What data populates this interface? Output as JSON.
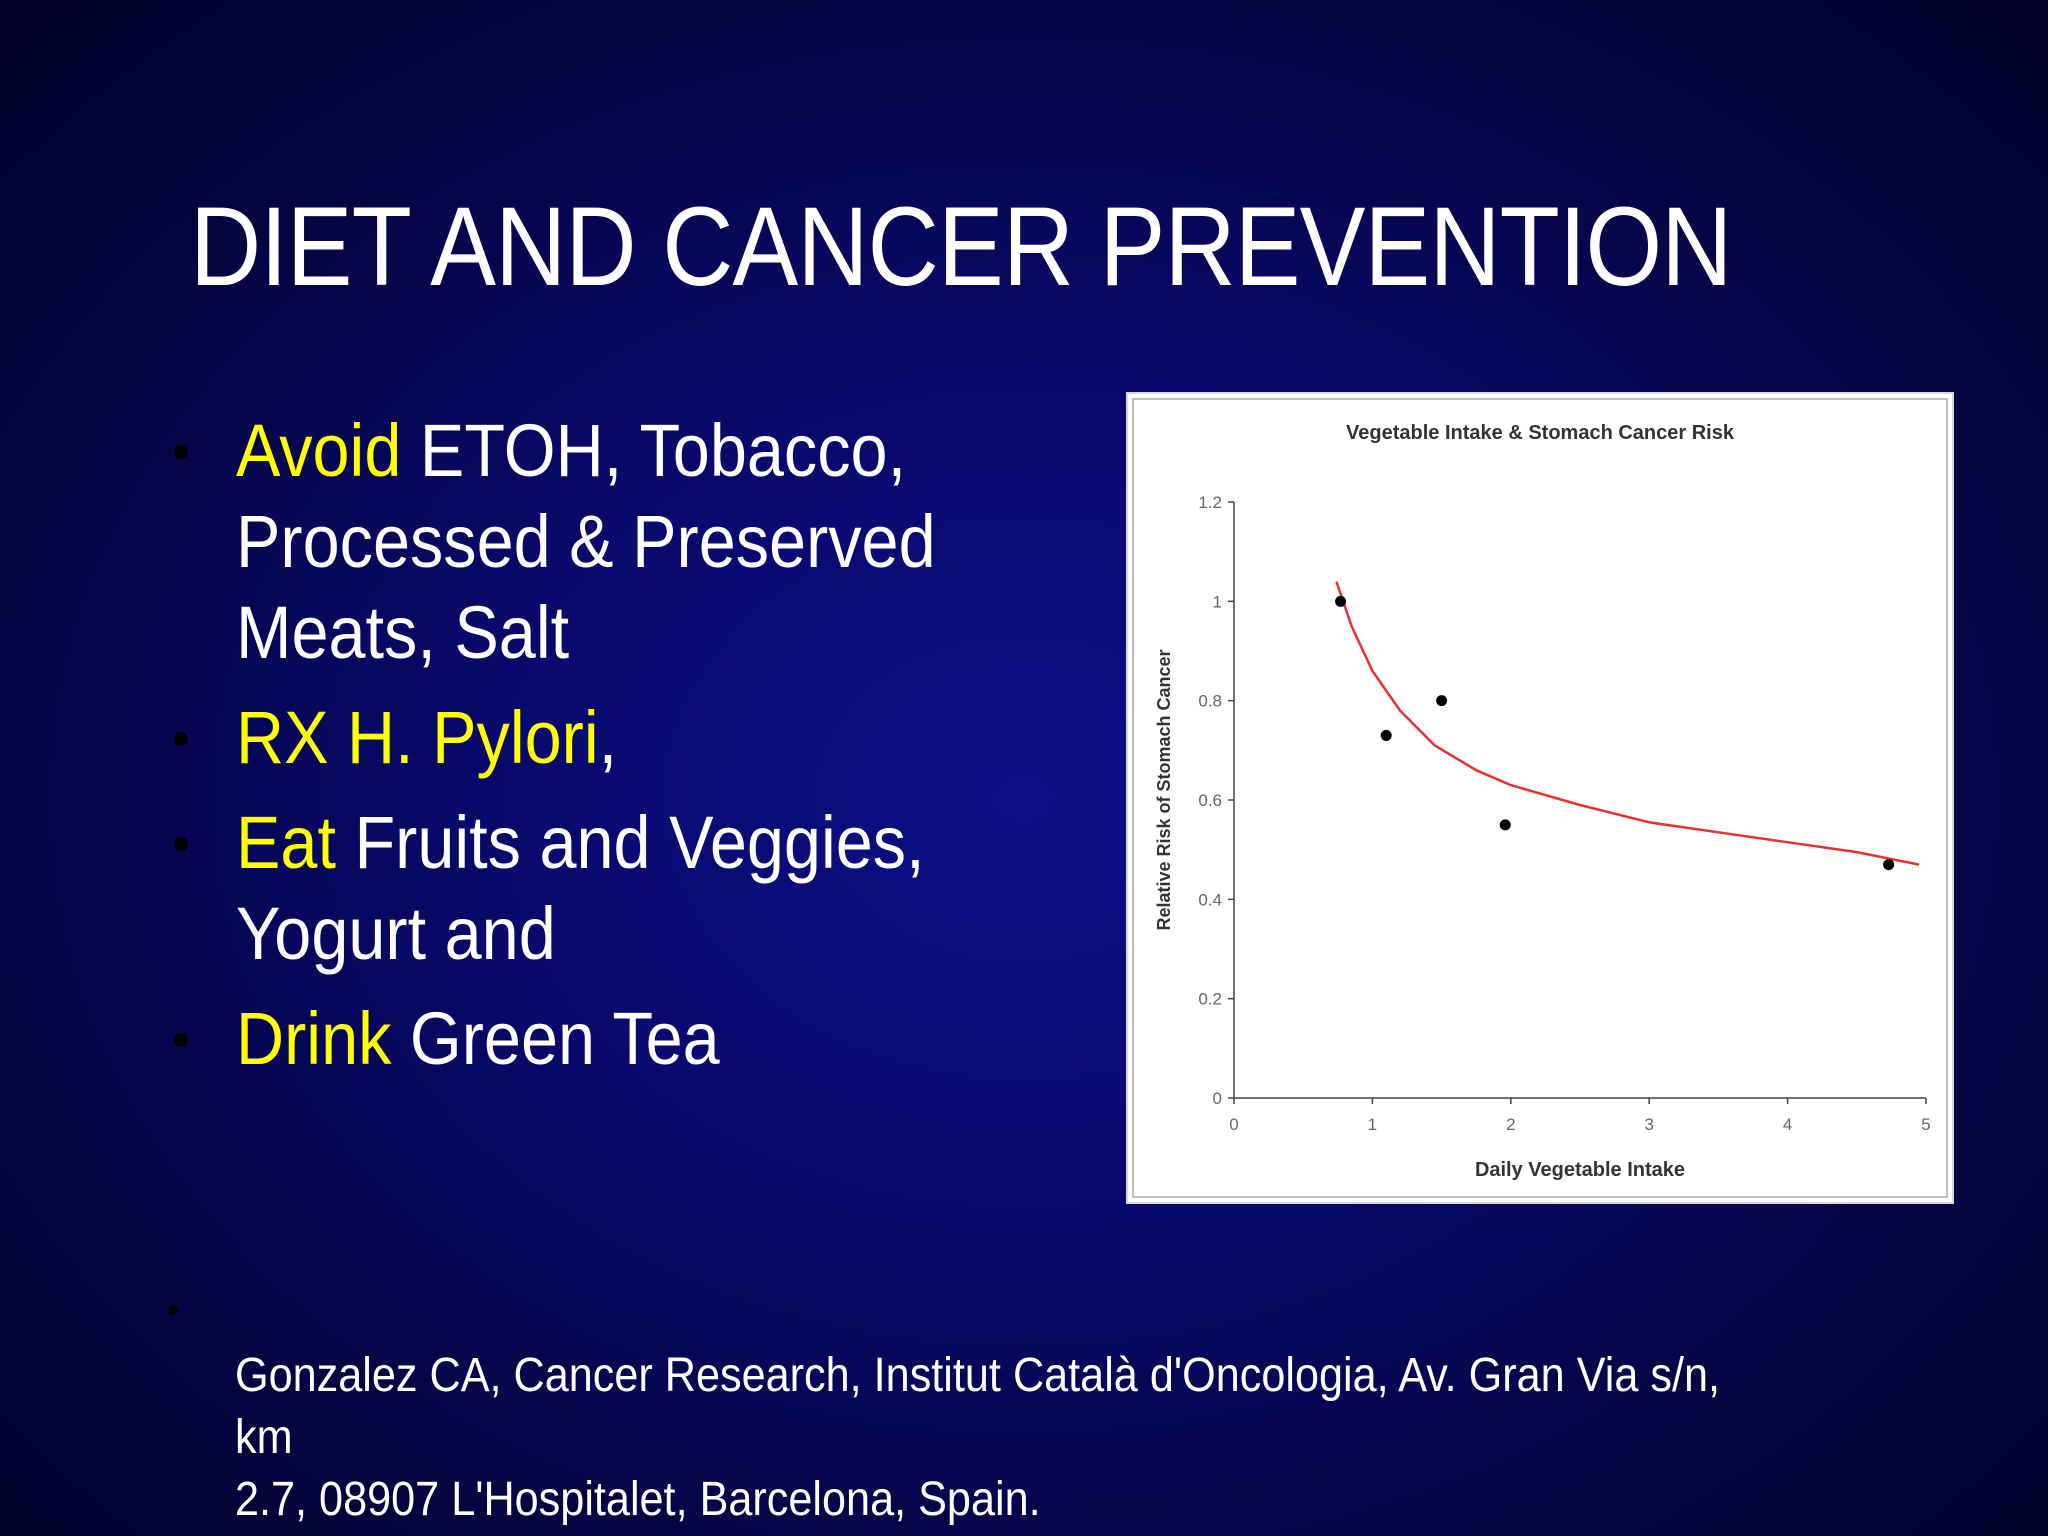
{
  "slide": {
    "title": "DIET AND CANCER PREVENTION",
    "bullets": [
      {
        "highlight": "Avoid",
        "rest": " ETOH, Tobacco,\nProcessed & Preserved\nMeats, Salt",
        "trail": ""
      },
      {
        "highlight": "RX H. Pylori",
        "rest": "",
        "trail": ","
      },
      {
        "highlight": "Eat",
        "rest": " Fruits and Veggies,\nYogurt and",
        "trail": ""
      },
      {
        "highlight": "Drink",
        "rest": " Green Tea",
        "trail": ""
      }
    ],
    "citation_line1": "Gonzalez CA, Cancer Research, Institut Català d'Oncologia, Av. Gran Via s/n, km",
    "citation_line2": "2.7, 08907 L'Hospitalet, Barcelona, Spain."
  },
  "colors": {
    "highlight": "#ffff00",
    "curve": "#e83030",
    "points": "#000000"
  },
  "chart_data": {
    "type": "scatter",
    "title": "Vegetable Intake & Stomach Cancer Risk",
    "xlabel": "Daily Vegetable Intake",
    "ylabel": "Relative Risk of Stomach Cancer",
    "xlim": [
      0,
      5
    ],
    "ylim": [
      0,
      1.2
    ],
    "xticks": [
      0,
      1,
      2,
      3,
      4,
      5
    ],
    "yticks": [
      0,
      0.2,
      0.4,
      0.6,
      0.8,
      1,
      1.2
    ],
    "grid": false,
    "legend": "none",
    "points": [
      {
        "x": 0.77,
        "y": 1.0
      },
      {
        "x": 1.1,
        "y": 0.73
      },
      {
        "x": 1.5,
        "y": 0.8
      },
      {
        "x": 1.96,
        "y": 0.55
      },
      {
        "x": 4.73,
        "y": 0.47
      }
    ],
    "trendline": [
      {
        "x": 0.74,
        "y": 1.04
      },
      {
        "x": 0.85,
        "y": 0.95
      },
      {
        "x": 1.0,
        "y": 0.86
      },
      {
        "x": 1.2,
        "y": 0.78
      },
      {
        "x": 1.45,
        "y": 0.71
      },
      {
        "x": 1.75,
        "y": 0.66
      },
      {
        "x": 2.0,
        "y": 0.63
      },
      {
        "x": 2.5,
        "y": 0.59
      },
      {
        "x": 3.0,
        "y": 0.555
      },
      {
        "x": 3.5,
        "y": 0.535
      },
      {
        "x": 4.0,
        "y": 0.515
      },
      {
        "x": 4.5,
        "y": 0.495
      },
      {
        "x": 4.95,
        "y": 0.47
      }
    ]
  }
}
